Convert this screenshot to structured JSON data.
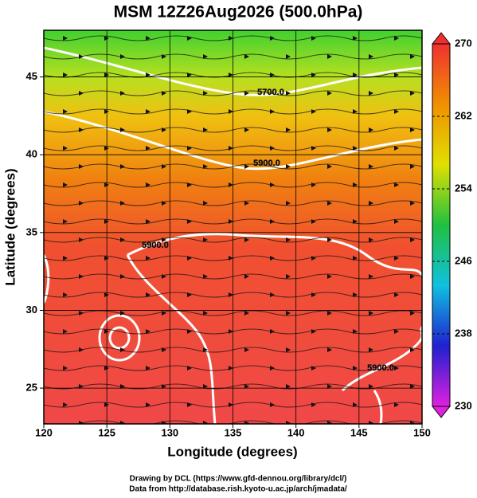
{
  "chart_data": {
    "type": "map",
    "title": "MSM 12Z26Aug2026 (500.0hPa)",
    "x_label": "Longitude (degrees)",
    "y_label": "Latitude  (degrees)",
    "xlim": [
      120,
      150
    ],
    "xticks": [
      120,
      125,
      130,
      135,
      140,
      145,
      150
    ],
    "ylim": [
      22.7,
      48
    ],
    "yticks": [
      25,
      30,
      35,
      40,
      45
    ],
    "grid": true,
    "colorbar": {
      "lim": [
        230,
        270
      ],
      "ticks": [
        230,
        238,
        246,
        254,
        262,
        270
      ],
      "colors": [
        "#e020e0",
        "#2020d0",
        "#10c0e0",
        "#20c040",
        "#e0e000",
        "#f09000",
        "#f03030"
      ]
    },
    "contour_labels": [
      "5700.0",
      "5900.0",
      "5900.0",
      "5900.0"
    ],
    "credits": [
      "Drawing by DCL (https://www.gfd-dennou.org/library/dcl/)",
      "Data from http://database.rish.kyoto-u.ac.jp/arch/jmadata/"
    ]
  }
}
